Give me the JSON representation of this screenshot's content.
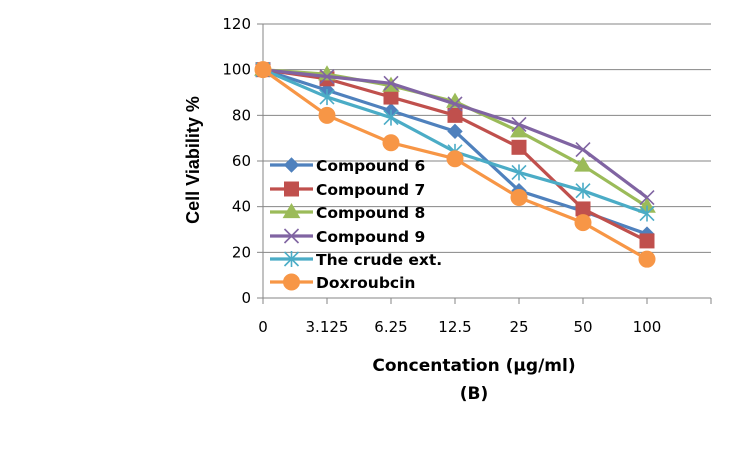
{
  "chart_data": {
    "type": "line",
    "title": "",
    "xlabel": "Concentation (µg/ml)",
    "ylabel": "Cell Viability %",
    "caption": "(B)",
    "categories": [
      "0",
      "3.125",
      "6.25",
      "12.5",
      "25",
      "50",
      "100"
    ],
    "ylim": [
      0,
      120
    ],
    "yticks": [
      0,
      20,
      40,
      60,
      80,
      100,
      120
    ],
    "ytick_labels": [
      "0",
      "20",
      "40",
      "60",
      "80",
      "100",
      "120"
    ],
    "grid": true,
    "legend_position": "bottom-left inside plot",
    "series": [
      {
        "name": "Compound 6",
        "marker": "diamond",
        "color": "#4F81BD",
        "values": [
          100,
          91,
          82,
          73,
          47,
          38,
          28
        ]
      },
      {
        "name": "Compound 7",
        "marker": "square",
        "color": "#C0504D",
        "values": [
          100,
          96,
          88,
          80,
          66,
          39,
          25
        ]
      },
      {
        "name": "Compound 8",
        "marker": "triangle",
        "color": "#9BBB59",
        "values": [
          100,
          98,
          93,
          86,
          73,
          58,
          40
        ]
      },
      {
        "name": "Compound 9",
        "marker": "x",
        "color": "#8064A2",
        "values": [
          100,
          97,
          94,
          85,
          76,
          65,
          44
        ]
      },
      {
        "name": "The crude ext.",
        "marker": "star",
        "color": "#4BACC6",
        "values": [
          100,
          88,
          79,
          64,
          55,
          47,
          37
        ]
      },
      {
        "name": "Doxroubcin",
        "marker": "circle",
        "color": "#F79646",
        "values": [
          100,
          80,
          68,
          61,
          44,
          33,
          17
        ]
      }
    ]
  }
}
